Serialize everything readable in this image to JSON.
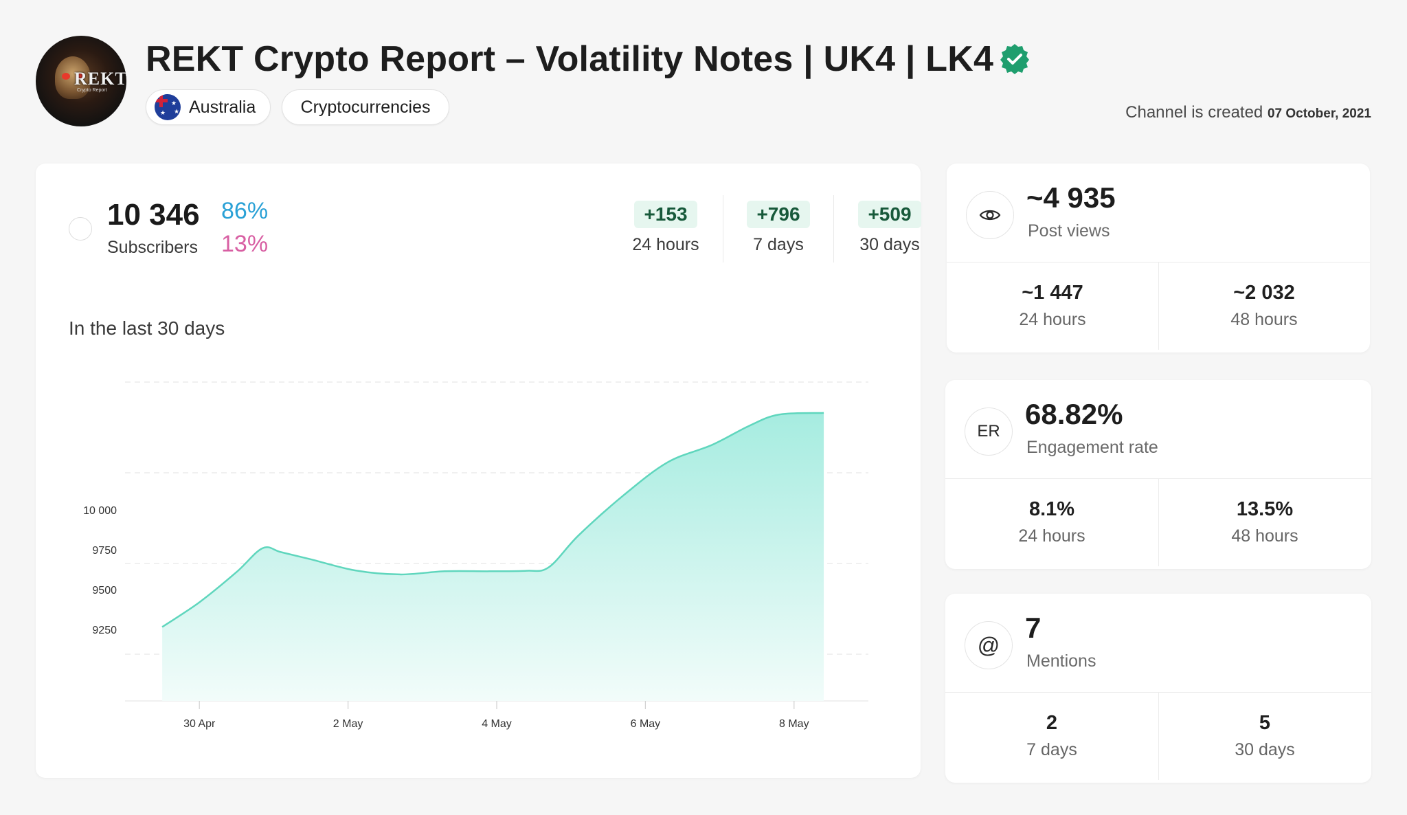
{
  "header": {
    "title": "REKT Crypto Report – Volatility Notes | UK4 | LK4",
    "avatar_text": "REKT",
    "avatar_sub": "Crypto Report",
    "country": "Australia",
    "category": "Cryptocurrencies",
    "created_prefix": "Channel is created",
    "created_date": "07 October, 2021",
    "verified_icon": "verified-check-icon",
    "colors": {
      "verified": "#1f9e6e"
    }
  },
  "subscribers": {
    "count": "10 346",
    "label": "Subscribers",
    "pct_up": "86%",
    "pct_down": "13%",
    "deltas": [
      {
        "value": "+153",
        "period": "24 hours"
      },
      {
        "value": "+796",
        "period": "7 days"
      },
      {
        "value": "+509",
        "period": "30 days"
      }
    ],
    "colors": {
      "up": "#2aa1d6",
      "down": "#d85fa3",
      "delta_bg": "#e6f6ef",
      "delta_text": "#17593a"
    }
  },
  "chart_title": "In the last 30 days",
  "chart_data": {
    "type": "area",
    "x": [
      0,
      0.5,
      1,
      1.35,
      1.6,
      2,
      2.6,
      3.2,
      3.8,
      4.4,
      4.9,
      5.2,
      5.6,
      6.2,
      6.8,
      7.4,
      7.9,
      8.3,
      8.9
    ],
    "y": [
      9265,
      9420,
      9610,
      9760,
      9735,
      9690,
      9620,
      9595,
      9615,
      9615,
      9618,
      9640,
      9840,
      10090,
      10300,
      10410,
      10530,
      10600,
      10610
    ],
    "x_ticks": [
      {
        "pos": 0.5,
        "label": "30 Apr"
      },
      {
        "pos": 2.5,
        "label": "2 May"
      },
      {
        "pos": 4.5,
        "label": "4 May"
      },
      {
        "pos": 6.5,
        "label": "6 May"
      },
      {
        "pos": 8.5,
        "label": "8 May"
      }
    ],
    "y_ticks": [
      {
        "value": 9250,
        "label": "9250"
      },
      {
        "value": 9500,
        "label": "9500"
      },
      {
        "value": 9750,
        "label": "9750"
      },
      {
        "value": 10000,
        "label": "10 000"
      }
    ],
    "xlim": [
      -0.5,
      9.5
    ],
    "ylim": [
      8800,
      10830
    ],
    "grid": true,
    "colors": {
      "line": "#5fd6bd",
      "fill_top": "#a6ece0",
      "fill_bottom": "#f2fcfa"
    }
  },
  "post_views": {
    "icon": "eye-icon",
    "value": "~4 935",
    "label": "Post views",
    "cells": [
      {
        "value": "~1 447",
        "label": "24 hours"
      },
      {
        "value": "~2 032",
        "label": "48 hours"
      }
    ]
  },
  "engagement": {
    "icon_text": "ER",
    "value": "68.82%",
    "label": "Engagement rate",
    "cells": [
      {
        "value": "8.1%",
        "label": "24 hours"
      },
      {
        "value": "13.5%",
        "label": "48 hours"
      }
    ]
  },
  "mentions": {
    "icon_text": "@",
    "value": "7",
    "label": "Mentions",
    "cells": [
      {
        "value": "2",
        "label": "7 days"
      },
      {
        "value": "5",
        "label": "30 days"
      }
    ]
  }
}
